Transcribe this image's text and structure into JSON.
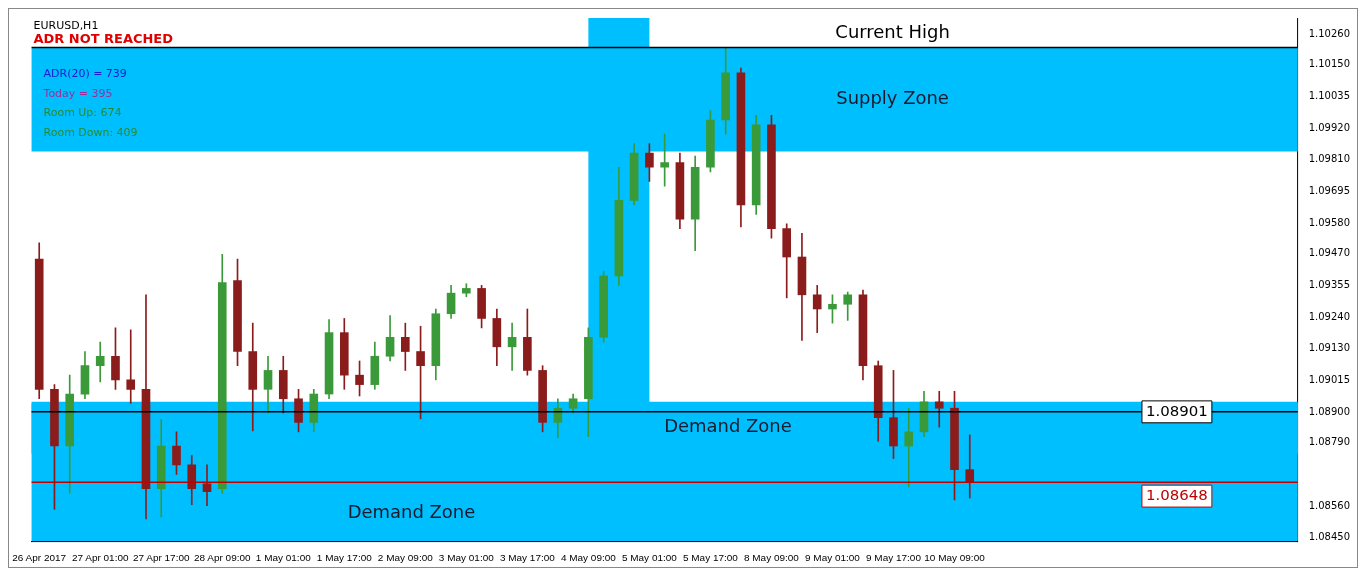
{
  "chart_data": {
    "type": "candlestick",
    "categories": [
      "26 Apr 2017",
      null,
      null,
      null,
      "27 Apr 01:00",
      null,
      null,
      null,
      "27 Apr 17:00",
      null,
      null,
      null,
      "28 Apr 09:00",
      null,
      null,
      null,
      "1 May 01:00",
      null,
      null,
      null,
      "1 May 17:00",
      null,
      null,
      null,
      "2 May 09:00",
      null,
      null,
      null,
      "3 May 01:00",
      null,
      null,
      null,
      "3 May 17:00",
      null,
      null,
      null,
      "4 May 09:00",
      null,
      null,
      null,
      "5 May 01:00",
      null,
      null,
      null,
      "5 May 17:00",
      null,
      null,
      null,
      "8 May 09:00",
      null,
      null,
      null,
      "9 May 01:00",
      null,
      null,
      null,
      "9 May 17:00",
      null,
      null,
      null,
      "10 May 09:00",
      null,
      null,
      null,
      null,
      null,
      null,
      null,
      null,
      null,
      null,
      null,
      null,
      null,
      null,
      null,
      null,
      null,
      null,
      null,
      null,
      null,
      null
    ],
    "ohlc": [
      [
        1.09451,
        1.09509,
        1.08948,
        1.08982
      ],
      [
        1.08982,
        1.08999,
        1.0855,
        1.08778
      ],
      [
        1.08778,
        1.09033,
        1.08608,
        1.08965
      ],
      [
        1.08965,
        1.09118,
        1.08948,
        1.09067
      ],
      [
        1.09067,
        1.09152,
        1.09009,
        1.09101
      ],
      [
        1.09101,
        1.09203,
        1.08982,
        1.09016
      ],
      [
        1.09016,
        1.09196,
        1.08931,
        1.08982
      ],
      [
        1.08982,
        1.09322,
        1.08516,
        1.08625
      ],
      [
        1.08625,
        1.08873,
        1.08523,
        1.08778
      ],
      [
        1.08778,
        1.08829,
        1.08676,
        1.0871
      ],
      [
        1.0871,
        1.08744,
        1.08567,
        1.08625
      ],
      [
        1.08642,
        1.0871,
        1.08563,
        1.08614
      ],
      [
        1.08625,
        1.09468,
        1.08608,
        1.09366
      ],
      [
        1.09373,
        1.09451,
        1.09067,
        1.09118
      ],
      [
        1.09118,
        1.0922,
        1.08832,
        1.08982
      ],
      [
        1.08982,
        1.09101,
        1.08897,
        1.0905
      ],
      [
        1.0905,
        1.09101,
        1.08897,
        1.08948
      ],
      [
        1.08948,
        1.08982,
        1.08829,
        1.08863
      ],
      [
        1.08863,
        1.08982,
        1.08829,
        1.08965
      ],
      [
        1.08965,
        1.09233,
        1.08948,
        1.09186
      ],
      [
        1.09186,
        1.09237,
        1.08982,
        1.09033
      ],
      [
        1.09033,
        1.09084,
        1.08958,
        1.08999
      ],
      [
        1.08999,
        1.09152,
        1.08982,
        1.09101
      ],
      [
        1.09101,
        1.09247,
        1.09084,
        1.09169
      ],
      [
        1.09169,
        1.0922,
        1.0905,
        1.09118
      ],
      [
        1.09118,
        1.09209,
        1.08876,
        1.09067
      ],
      [
        1.09067,
        1.09271,
        1.09016,
        1.09254
      ],
      [
        1.09254,
        1.09356,
        1.09237,
        1.09328
      ],
      [
        1.09328,
        1.09362,
        1.09315,
        1.09345
      ],
      [
        1.09345,
        1.09356,
        1.09203,
        1.09237
      ],
      [
        1.09237,
        1.09271,
        1.09067,
        1.09135
      ],
      [
        1.09135,
        1.0922,
        1.0905,
        1.09169
      ],
      [
        1.09169,
        1.09271,
        1.09033,
        1.0905
      ],
      [
        1.0905,
        1.09067,
        1.08829,
        1.08863
      ],
      [
        1.08863,
        1.08948,
        1.08808,
        1.08914
      ],
      [
        1.08914,
        1.08965,
        1.08897,
        1.08948
      ],
      [
        1.08948,
        1.09203,
        1.08812,
        1.09169
      ],
      [
        1.09169,
        1.09407,
        1.09152,
        1.0939
      ],
      [
        1.0939,
        1.09781,
        1.09356,
        1.09662
      ],
      [
        1.09662,
        1.09866,
        1.09645,
        1.09832
      ],
      [
        1.09832,
        1.09866,
        1.0973,
        1.09781
      ],
      [
        1.09781,
        1.099,
        1.09713,
        1.09798
      ],
      [
        1.09798,
        1.09832,
        1.0956,
        1.09594
      ],
      [
        1.09594,
        1.09821,
        1.09481,
        1.09781
      ],
      [
        1.09781,
        1.09985,
        1.09764,
        1.09951
      ],
      [
        1.09951,
        1.10212,
        1.099,
        1.10121
      ],
      [
        1.10121,
        1.10138,
        1.09566,
        1.09645
      ],
      [
        1.09645,
        1.09968,
        1.09611,
        1.09934
      ],
      [
        1.09934,
        1.09968,
        1.09526,
        1.0956
      ],
      [
        1.0956,
        1.09577,
        1.09311,
        1.09458
      ],
      [
        1.09458,
        1.09543,
        1.09158,
        1.09322
      ],
      [
        1.09322,
        1.09356,
        1.09186,
        1.09271
      ],
      [
        1.09271,
        1.09322,
        1.0922,
        1.09288
      ],
      [
        1.09288,
        1.09332,
        1.0923,
        1.09322
      ],
      [
        1.09322,
        1.09339,
        1.09016,
        1.09067
      ],
      [
        1.09067,
        1.09084,
        1.08795,
        1.0888
      ],
      [
        1.0888,
        1.0905,
        1.08733,
        1.08778
      ],
      [
        1.08778,
        1.08914,
        1.08631,
        1.08829
      ],
      [
        1.08829,
        1.08975,
        1.08812,
        1.08937
      ],
      [
        1.08937,
        1.08975,
        1.08846,
        1.08914
      ],
      [
        1.08914,
        1.08975,
        1.08584,
        1.08693
      ],
      [
        1.08693,
        1.08818,
        1.08591,
        1.08648
      ],
      null,
      null,
      null,
      null,
      null,
      null,
      null,
      null,
      null,
      null,
      null,
      null,
      null,
      null,
      null,
      null,
      null,
      null,
      null,
      null,
      null
    ],
    "ylim": [
      1.08436,
      1.10318
    ],
    "yticks": [
      {
        "value": 1.0845,
        "label": "1.08450"
      },
      {
        "value": 1.0856,
        "label": "1.08560"
      },
      {
        "value": 1.0879,
        "label": "1.08790"
      },
      {
        "value": 1.089,
        "label": "1.08900"
      },
      1.09015,
      {
        "value": 1.0913,
        "label": "1.09130"
      },
      {
        "value": 1.0924,
        "label": "1.09240"
      },
      1.09355,
      {
        "value": 1.0947,
        "label": "1.09470"
      },
      {
        "value": 1.0958,
        "label": "1.09580"
      },
      1.09695,
      {
        "value": 1.0981,
        "label": "1.09810"
      },
      {
        "value": 1.0992,
        "label": "1.09920"
      },
      1.10035,
      {
        "value": 1.1015,
        "label": "1.10150"
      },
      {
        "value": 1.1026,
        "label": "1.10260"
      }
    ],
    "bands": [
      {
        "axis": "y",
        "from": 1.09838,
        "to": 1.10212,
        "label": "Supply Zone",
        "color": "#00bfff"
      },
      {
        "axis": "y",
        "from": 1.08436,
        "to": 1.08931,
        "label": "Demand Zone",
        "color": "#00bfff"
      },
      {
        "axis": "y",
        "from": 1.0875,
        "to": 1.08937,
        "label": "Demand Zone",
        "color": "#00bfff"
      },
      {
        "axis": "x",
        "from": "4 May 09:00",
        "to": "5 May 01:00",
        "color": "#00bfff"
      }
    ],
    "ref_lines": [
      {
        "axis": "y",
        "value": 1.10212,
        "label": "Current High",
        "color": "#000000"
      },
      {
        "axis": "y",
        "value": 1.08901,
        "label": "1.08901",
        "color": "#000000"
      },
      {
        "axis": "y",
        "value": 1.08648,
        "label": "1.08648",
        "color": "#c00000"
      }
    ],
    "annotations": [
      "EURUSD,H1",
      "ADR NOT REACHED",
      "ADR(20) = 739",
      "Today = 395",
      "Room Up: 674",
      "Room Down: 409"
    ],
    "legend": false
  }
}
